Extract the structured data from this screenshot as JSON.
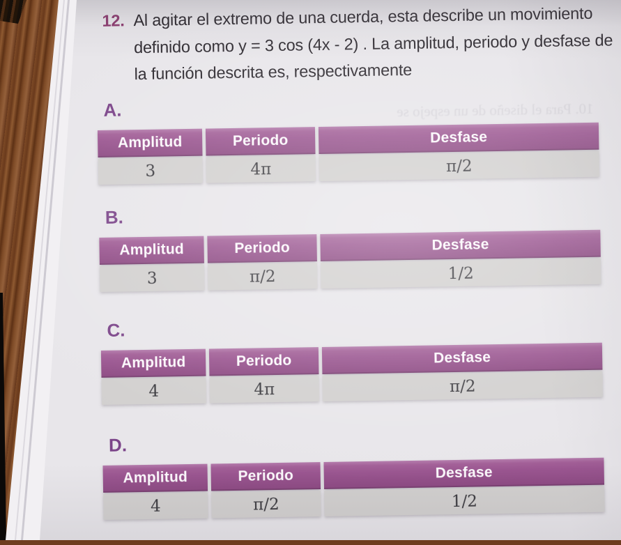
{
  "page": {
    "question": {
      "number": "12.",
      "lines": [
        "Al agitar el extremo de una cuerda, esta describe un movimiento",
        "definido como y = 3 cos (4x - 2) . La amplitud, periodo y desfase de",
        "la función descrita es, respectivamente"
      ]
    },
    "table_headers": [
      "Amplitud",
      "Periodo",
      "Desfase"
    ],
    "options": [
      {
        "label": "A.",
        "values": [
          "3",
          "4π",
          "π/2"
        ]
      },
      {
        "label": "B.",
        "values": [
          "3",
          "π/2",
          "1/2"
        ]
      },
      {
        "label": "C.",
        "values": [
          "4",
          "4π",
          "π/2"
        ]
      },
      {
        "label": "D.",
        "values": [
          "4",
          "π/2",
          "1/2"
        ]
      }
    ],
    "bleed_fragment": "10. Para el diseño de un espejo se",
    "colors": {
      "table_header_bg": "#9a5590",
      "table_row_bg": "#d2d0cf",
      "question_number": "#8e3e72",
      "option_label": "#7b4489",
      "page_bg": "#e8e6ea",
      "wood_bg": "#7d4a26"
    }
  }
}
